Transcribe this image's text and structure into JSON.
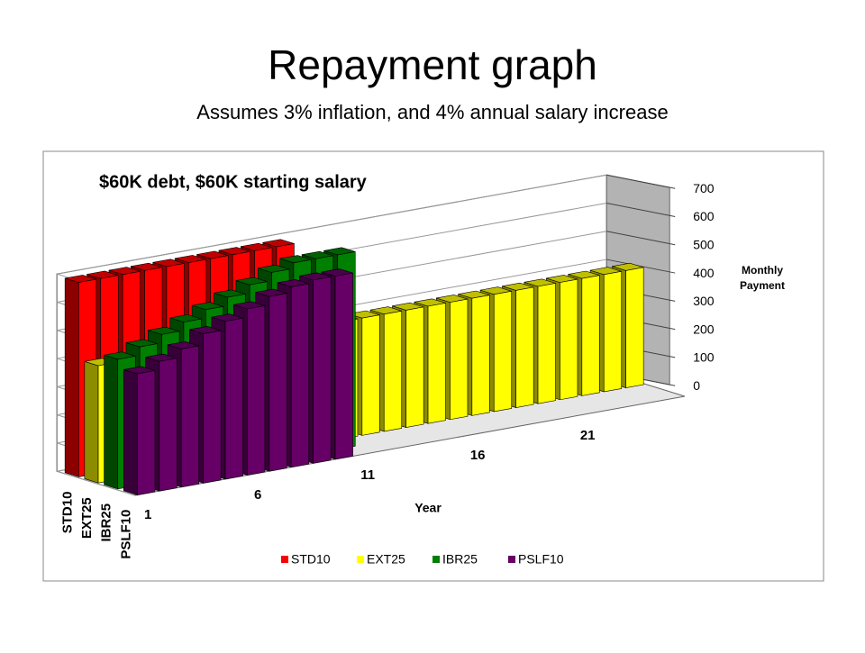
{
  "slide": {
    "title": "Repayment graph",
    "subtitle": "Assumes 3% inflation, and 4% annual salary increase"
  },
  "chart_data": {
    "type": "bar3d",
    "title": "$60K debt, $60K starting salary",
    "x_label": "Year",
    "y_label": "Monthly Payment",
    "categories": [
      1,
      null,
      null,
      null,
      null,
      6,
      null,
      null,
      null,
      null,
      11,
      null,
      null,
      null,
      null,
      16,
      null,
      null,
      null,
      null,
      21,
      null,
      null,
      null,
      null
    ],
    "series": [
      {
        "name": "STD10",
        "color": "#ff0000",
        "values": [
          690,
          690,
          690,
          690,
          690,
          690,
          690,
          690,
          690,
          690,
          null,
          null,
          null,
          null,
          null,
          null,
          null,
          null,
          null,
          null,
          null,
          null,
          null,
          null,
          null
        ]
      },
      {
        "name": "EXT25",
        "color": "#ffff00",
        "values": [
          416,
          416,
          416,
          416,
          416,
          416,
          416,
          416,
          416,
          416,
          416,
          416,
          416,
          416,
          416,
          416,
          416,
          416,
          416,
          416,
          416,
          416,
          416,
          416,
          416
        ]
      },
      {
        "name": "IBR25",
        "color": "#008000",
        "values": [
          460,
          490,
          520,
          550,
          580,
          610,
          640,
          670,
          690,
          690,
          690,
          null,
          null,
          null,
          null,
          null,
          null,
          null,
          null,
          null,
          null,
          null,
          null,
          null,
          null
        ]
      },
      {
        "name": "PSLF10",
        "color": "#660066",
        "values": [
          430,
          460,
          490,
          530,
          560,
          590,
          620,
          640,
          650,
          650,
          null,
          null,
          null,
          null,
          null,
          null,
          null,
          null,
          null,
          null,
          null,
          null,
          null,
          null,
          null
        ]
      }
    ],
    "ylim": [
      0,
      700
    ],
    "yticks": [
      0,
      100,
      200,
      300,
      400,
      500,
      600,
      700
    ],
    "grid": true,
    "legend": "bottom"
  }
}
